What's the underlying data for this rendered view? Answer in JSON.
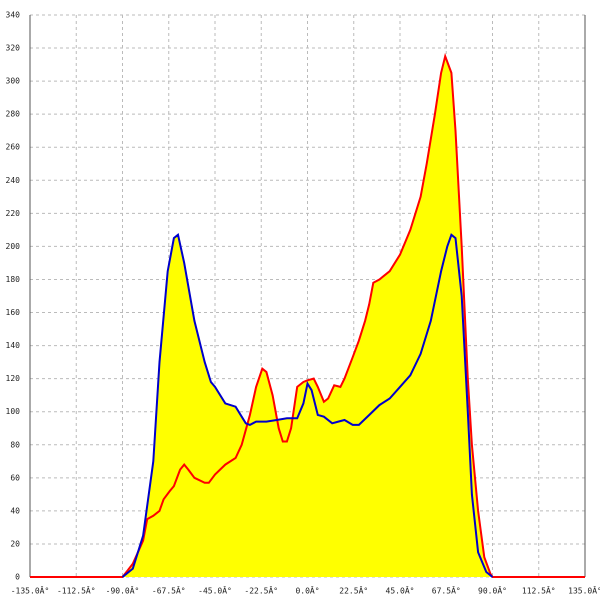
{
  "chart_data": {
    "type": "area-line",
    "xlim": [
      -135,
      135
    ],
    "ylim": [
      0,
      340
    ],
    "xticks": [
      {
        "value": -135,
        "label": "-135.0Â°"
      },
      {
        "value": -112.5,
        "label": "-112.5Â°"
      },
      {
        "value": -90,
        "label": "-90.0Â°"
      },
      {
        "value": -67.5,
        "label": "-67.5Â°"
      },
      {
        "value": -45,
        "label": "-45.0Â°"
      },
      {
        "value": -22.5,
        "label": "-22.5Â°"
      },
      {
        "value": 0,
        "label": "0.0Â°"
      },
      {
        "value": 22.5,
        "label": "22.5Â°"
      },
      {
        "value": 45,
        "label": "45.0Â°"
      },
      {
        "value": 67.5,
        "label": "67.5Â°"
      },
      {
        "value": 90,
        "label": "90.0Â°"
      },
      {
        "value": 112.5,
        "label": "112.5Â°"
      },
      {
        "value": 135,
        "label": "135.0Â°"
      }
    ],
    "yticks": [
      0,
      20,
      40,
      60,
      80,
      100,
      120,
      140,
      160,
      180,
      200,
      220,
      240,
      260,
      280,
      300,
      320,
      340
    ],
    "grid": true,
    "fill_color": "#ffff00",
    "series": [
      {
        "color": "#ff0000",
        "x": [
          -135,
          -90,
          -85,
          -80,
          -78,
          -75,
          -72,
          -70,
          -67,
          -65,
          -62,
          -60,
          -58,
          -55,
          -50,
          -48,
          -45,
          -40,
          -35,
          -32,
          -28,
          -25,
          -22,
          -20,
          -17,
          -14,
          -12,
          -10,
          -8,
          -5,
          -2,
          0,
          3,
          5,
          8,
          10,
          13,
          16,
          18,
          22,
          25,
          28,
          30,
          32,
          35,
          40,
          45,
          50,
          55,
          58,
          62,
          65,
          67,
          70,
          72,
          75,
          78,
          80,
          83,
          86,
          89,
          90,
          135
        ],
        "values": [
          0,
          0,
          8,
          22,
          35,
          37,
          40,
          47,
          52,
          55,
          65,
          68,
          65,
          60,
          57,
          57,
          62,
          68,
          72,
          80,
          98,
          115,
          126,
          124,
          110,
          90,
          82,
          82,
          90,
          115,
          118,
          119,
          120,
          115,
          106,
          108,
          116,
          115,
          120,
          133,
          143,
          155,
          165,
          178,
          180,
          185,
          195,
          210,
          230,
          250,
          280,
          305,
          315,
          305,
          270,
          200,
          120,
          80,
          40,
          12,
          2,
          0,
          0
        ]
      },
      {
        "color": "#0000cc",
        "x": [
          -90,
          -85,
          -80,
          -75,
          -72,
          -68,
          -65,
          -63,
          -60,
          -55,
          -50,
          -47,
          -45,
          -40,
          -35,
          -32,
          -30,
          -28,
          -25,
          -20,
          -15,
          -10,
          -5,
          -2,
          0,
          2,
          5,
          8,
          12,
          15,
          18,
          22,
          25,
          30,
          35,
          40,
          45,
          50,
          55,
          60,
          65,
          68,
          70,
          72,
          75,
          78,
          80,
          83,
          87,
          90
        ],
        "values": [
          0,
          5,
          25,
          70,
          130,
          185,
          205,
          207,
          190,
          155,
          130,
          118,
          115,
          105,
          103,
          97,
          93,
          92,
          94,
          94,
          95,
          96,
          96,
          105,
          117,
          113,
          98,
          97,
          93,
          94,
          95,
          92,
          92,
          98,
          104,
          108,
          115,
          122,
          135,
          155,
          185,
          200,
          207,
          205,
          170,
          100,
          50,
          15,
          3,
          0
        ]
      }
    ]
  }
}
